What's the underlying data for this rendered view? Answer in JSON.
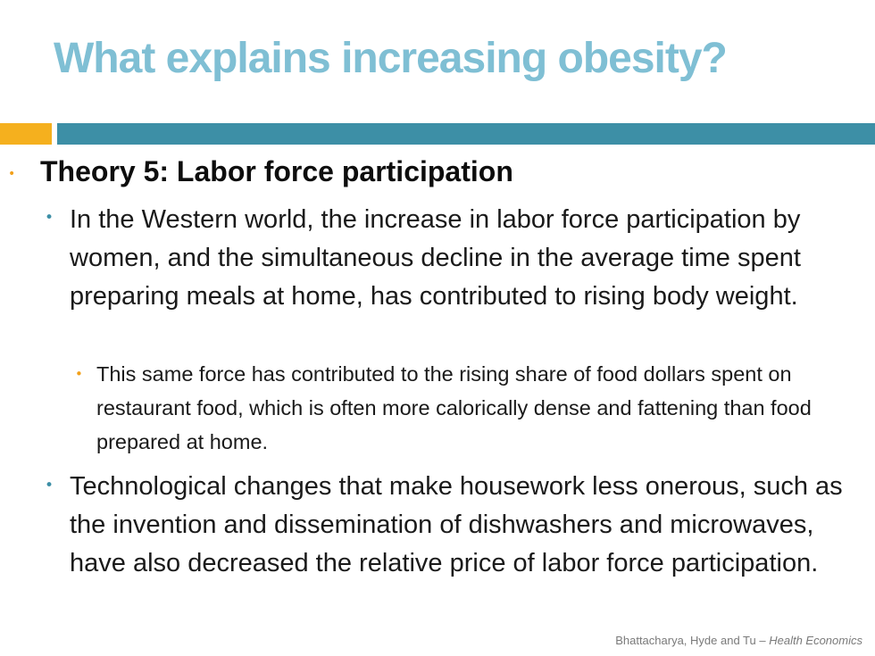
{
  "slide": {
    "title": "What explains increasing obesity?",
    "heading": "Theory 5: Labor force participation",
    "bullets": [
      "In the Western world, the increase in labor force participation by women, and the simultaneous decline in the average time spent preparing meals at home, has contributed to rising body weight.",
      "This same force has contributed to the rising share of food dollars spent on restaurant food, which is often more calorically dense and fattening than food prepared at home.",
      "Technological changes that make housework less onerous, such as the invention and dissemination of dishwashers and microwaves, have also decreased the relative price of labor force participation."
    ],
    "bullet_glyph": "•",
    "footer_authors": "Bhattacharya, Hyde and Tu –",
    "footer_book": "Health Economics"
  },
  "colors": {
    "title": "#7fbfd4",
    "band_accent": "#f5b01e",
    "band_main": "#3d8fa6",
    "bullet_orange": "#f2a01a",
    "bullet_teal": "#3d8fa6"
  }
}
